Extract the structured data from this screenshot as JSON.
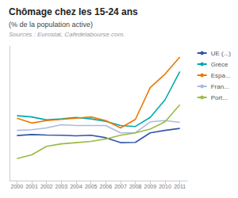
{
  "chart_data": {
    "type": "line",
    "title": "Chômage chez les 15-24 ans",
    "subtitle": "(% de la population active)",
    "annotations": [
      "Sources : Eurostat, Cafedelabourse.com."
    ],
    "x": [
      2000,
      2001,
      2002,
      2003,
      2004,
      2005,
      2006,
      2007,
      2008,
      2009,
      2010,
      2011
    ],
    "series": [
      {
        "name": "UE (...)",
        "color": "#3355aa",
        "values": [
          18.4,
          18.8,
          18.6,
          18.5,
          18.3,
          18.5,
          17.5,
          15.5,
          15.6,
          19.5,
          20.5,
          21.3
        ]
      },
      {
        "name": "Grèce",
        "color": "#00aaaa",
        "values": [
          26.5,
          26.0,
          24.8,
          25.2,
          25.8,
          25.2,
          24.2,
          22.5,
          22.1,
          25.8,
          33.0,
          44.5
        ]
      },
      {
        "name": "Espa...",
        "color": "#ee7700",
        "values": [
          25.5,
          23.5,
          24.5,
          25.0,
          25.5,
          26.0,
          24.5,
          21.5,
          25.0,
          38.0,
          43.5,
          50.5
        ]
      },
      {
        "name": "Fran...",
        "color": "#aabbdd",
        "values": [
          20.5,
          20.8,
          21.5,
          22.8,
          22.5,
          22.5,
          22.5,
          19.5,
          19.5,
          24.0,
          24.5,
          23.8
        ]
      },
      {
        "name": "Port...",
        "color": "#99bb44",
        "values": [
          9.0,
          10.5,
          14.0,
          15.0,
          15.5,
          16.0,
          17.0,
          18.5,
          19.5,
          21.0,
          24.0,
          31.0
        ]
      }
    ],
    "xlim": [
      1999.5,
      2011.5
    ],
    "xticks": [
      2000,
      2001,
      2002,
      2003,
      2004,
      2005,
      2006,
      2007,
      2008,
      2009,
      2010,
      2011
    ],
    "ylim": [
      0,
      55
    ],
    "grid": false,
    "legend": "right",
    "tick_labels": "x"
  }
}
